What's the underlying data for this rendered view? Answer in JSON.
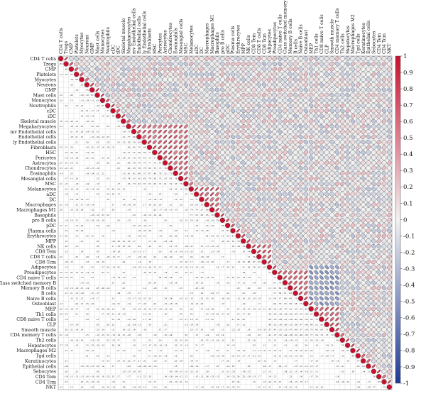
{
  "chart_data": {
    "type": "heatmap",
    "subtype": "correlation-matrix-upper-triangle",
    "labels": [
      "CD4 T cells",
      "Tregs",
      "CMP",
      "Platelets",
      "Myocytes",
      "Neurons",
      "GMP",
      "Mast cells",
      "Monocytes",
      "Neutrophils",
      "cDC",
      "iDC",
      "Skeletal muscle",
      "Megakaryocytes",
      "mv Endothelial cells",
      "Endothelial cells",
      "ly Endothelial cells",
      "Fibroblasts",
      "HSC",
      "Pericytes",
      "Astrocytes",
      "Chondrocytes",
      "Eosinophils",
      "Mesangial cells",
      "MSC",
      "Melanocytes",
      "aDC",
      "DC",
      "Macrophages",
      "Macrophages M1",
      "Basophils",
      "pro B cells",
      "pDC",
      "Plasma cells",
      "Erythrocytes",
      "MPP",
      "NK cells",
      "CD8 Tem",
      "CD8 T cells",
      "CD8 Tcm",
      "Adipocytes",
      "Preadipocytes",
      "CD4 naive T cells",
      "Class switched memory B",
      "Memory B cells",
      "B cells",
      "Naive B cells",
      "Osteoblast",
      "MEP",
      "Th1 cells",
      "CD8 naive T cells",
      "CLP",
      "Smooth muscle",
      "CD4 memory T cells",
      "Th2 cells",
      "Hepatocytes",
      "Macrophages M2",
      "Tgd cells",
      "Keratinocytes",
      "Epithelial cells",
      "Sebocytes",
      "CD4 Tem",
      "CD4 Tcm",
      "NKT"
    ],
    "clusters": [
      [
        13,
        24
      ],
      [
        25,
        30
      ],
      [
        36,
        40
      ],
      [
        41,
        47
      ],
      [
        48,
        53
      ]
    ],
    "cluster_strength": 0.8,
    "neg_block": [
      [
        48,
        53
      ],
      [
        40,
        47
      ]
    ],
    "neg_strength": -0.55,
    "colorbar": {
      "min": -1,
      "max": 1,
      "ticks": [
        1,
        0.9,
        0.8,
        0.7,
        0.6,
        0.5,
        0.4,
        0.3,
        0.2,
        0.1,
        0,
        -0.1,
        -0.2,
        -0.3,
        -0.4,
        -0.5,
        -0.6,
        -0.7,
        -0.8,
        -0.9,
        -1
      ],
      "tick_labels": [
        "1",
        "0.9",
        "0.8",
        "0.7",
        "0.6",
        "0.5",
        "0.4",
        "0.3",
        "0.2",
        "0.1",
        "0",
        "-0.1",
        "-0.2",
        "-0.3",
        "-0.4",
        "-0.5",
        "-0.6",
        "-0.7",
        "-0.8",
        "-0.9",
        "-1"
      ],
      "colors": [
        "#1f3a93",
        "#f2f2f2",
        "#c8102e"
      ]
    },
    "grid": true,
    "diagonal_value": 1,
    "lower_triangle": "numeric-labels",
    "upper_triangle": "ellipses"
  }
}
